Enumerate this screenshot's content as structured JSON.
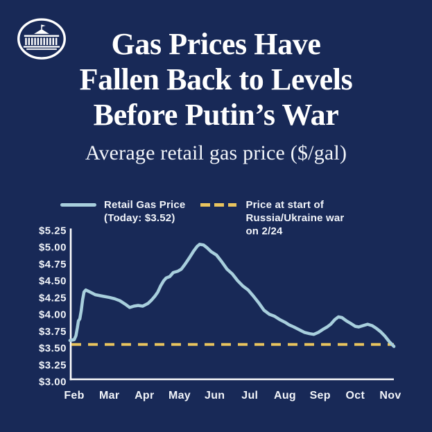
{
  "colors": {
    "background": "#182957",
    "text": "#f2f5fa",
    "title_text": "#ffffff",
    "axis": "#ffffff",
    "retail_line": "#A8CFDD",
    "war_line": "#E9C45E"
  },
  "header": {
    "logo_icon": "whitehouse-icon",
    "title_lines": [
      "Gas Prices Have",
      "Fallen Back to Levels",
      "Before Putin’s War"
    ],
    "subtitle": "Average retail gas price ($/gal)"
  },
  "legend": {
    "series": [
      {
        "swatch": "solid-line",
        "color": "#A8CFDD",
        "lines": [
          "Retail Gas Price",
          "(Today: $3.52)"
        ]
      },
      {
        "swatch": "dashed-line",
        "color": "#E9C45E",
        "lines": [
          "Price at start of",
          "Russia/Ukraine war",
          "on 2/24"
        ]
      }
    ]
  },
  "chart_data": {
    "type": "line",
    "title": "Average retail gas price ($/gal)",
    "grid": false,
    "legend_position": "top",
    "x_axis": {
      "unit": "month",
      "tick_labels": [
        "Feb",
        "Mar",
        "Apr",
        "May",
        "Jun",
        "Jul",
        "Aug",
        "Sep",
        "Oct",
        "Nov"
      ],
      "note": "series point x values are fractional month offsets, Feb=0 through Nov=9"
    },
    "y_axis": {
      "unit": "$/gal",
      "min": 3.0,
      "max": 5.25,
      "tick_labels": [
        "$5.25",
        "$5.00",
        "$4.75",
        "$4.50",
        "$4.25",
        "$4.00",
        "$3.75",
        "$3.50",
        "$3.25",
        "$3.00"
      ]
    },
    "series": [
      {
        "name": "Retail Gas Price",
        "style": "solid",
        "color": "#A8CFDD",
        "today_value": 3.52,
        "points": [
          [
            -0.12,
            3.61
          ],
          [
            0.0,
            3.62
          ],
          [
            0.05,
            3.68
          ],
          [
            0.09,
            3.8
          ],
          [
            0.12,
            3.9
          ],
          [
            0.16,
            3.93
          ],
          [
            0.2,
            4.05
          ],
          [
            0.24,
            4.22
          ],
          [
            0.28,
            4.33
          ],
          [
            0.33,
            4.36
          ],
          [
            0.45,
            4.33
          ],
          [
            0.6,
            4.29
          ],
          [
            0.8,
            4.27
          ],
          [
            1.0,
            4.25
          ],
          [
            1.15,
            4.23
          ],
          [
            1.3,
            4.2
          ],
          [
            1.45,
            4.15
          ],
          [
            1.58,
            4.1
          ],
          [
            1.7,
            4.12
          ],
          [
            1.82,
            4.13
          ],
          [
            1.95,
            4.12
          ],
          [
            2.1,
            4.16
          ],
          [
            2.2,
            4.21
          ],
          [
            2.3,
            4.27
          ],
          [
            2.38,
            4.33
          ],
          [
            2.46,
            4.42
          ],
          [
            2.55,
            4.5
          ],
          [
            2.62,
            4.54
          ],
          [
            2.72,
            4.56
          ],
          [
            2.82,
            4.62
          ],
          [
            2.95,
            4.64
          ],
          [
            3.05,
            4.67
          ],
          [
            3.15,
            4.74
          ],
          [
            3.28,
            4.84
          ],
          [
            3.4,
            4.94
          ],
          [
            3.5,
            5.01
          ],
          [
            3.57,
            5.04
          ],
          [
            3.68,
            5.03
          ],
          [
            3.78,
            4.99
          ],
          [
            3.9,
            4.93
          ],
          [
            4.05,
            4.88
          ],
          [
            4.2,
            4.78
          ],
          [
            4.35,
            4.67
          ],
          [
            4.5,
            4.6
          ],
          [
            4.65,
            4.5
          ],
          [
            4.8,
            4.42
          ],
          [
            4.95,
            4.36
          ],
          [
            5.1,
            4.27
          ],
          [
            5.25,
            4.17
          ],
          [
            5.4,
            4.06
          ],
          [
            5.55,
            4.0
          ],
          [
            5.7,
            3.97
          ],
          [
            5.85,
            3.92
          ],
          [
            6.0,
            3.88
          ],
          [
            6.12,
            3.84
          ],
          [
            6.25,
            3.81
          ],
          [
            6.4,
            3.77
          ],
          [
            6.55,
            3.73
          ],
          [
            6.7,
            3.71
          ],
          [
            6.82,
            3.7
          ],
          [
            6.95,
            3.73
          ],
          [
            7.1,
            3.78
          ],
          [
            7.2,
            3.81
          ],
          [
            7.3,
            3.85
          ],
          [
            7.42,
            3.92
          ],
          [
            7.52,
            3.96
          ],
          [
            7.62,
            3.95
          ],
          [
            7.75,
            3.9
          ],
          [
            7.88,
            3.86
          ],
          [
            8.0,
            3.82
          ],
          [
            8.1,
            3.81
          ],
          [
            8.22,
            3.83
          ],
          [
            8.35,
            3.85
          ],
          [
            8.48,
            3.83
          ],
          [
            8.6,
            3.79
          ],
          [
            8.72,
            3.74
          ],
          [
            8.85,
            3.67
          ],
          [
            8.97,
            3.59
          ],
          [
            9.1,
            3.52
          ]
        ]
      },
      {
        "name": "Price at start of Russia/Ukraine war on 2/24",
        "style": "dashed",
        "color": "#E9C45E",
        "value": 3.55
      }
    ]
  }
}
